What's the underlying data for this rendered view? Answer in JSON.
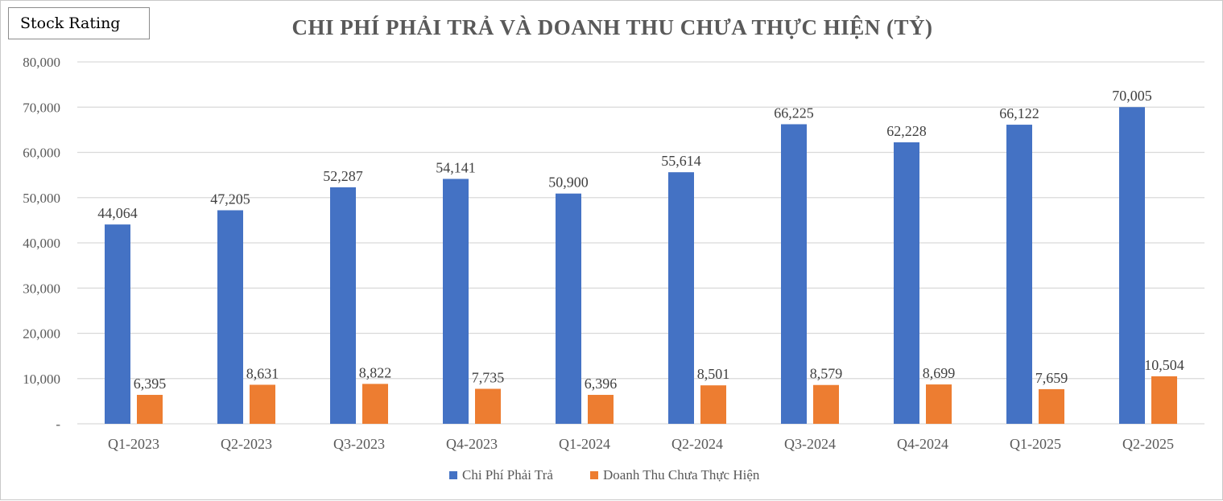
{
  "badge": {
    "label": "Stock Rating"
  },
  "chart_data": {
    "type": "bar",
    "title": "CHI PHÍ PHẢI TRẢ VÀ DOANH THU CHƯA THỰC HIỆN (TỶ)",
    "categories": [
      "Q1-2023",
      "Q2-2023",
      "Q3-2023",
      "Q4-2023",
      "Q1-2024",
      "Q2-2024",
      "Q3-2024",
      "Q4-2024",
      "Q1-2025",
      "Q2-2025"
    ],
    "series": [
      {
        "name": "Chi Phí Phải Trả",
        "color": "#4472C4",
        "values": [
          44064,
          47205,
          52287,
          54141,
          50900,
          55614,
          66225,
          62228,
          66122,
          70005
        ],
        "labels": [
          "44,064",
          "47,205",
          "52,287",
          "54,141",
          "50,900",
          "55,614",
          "66,225",
          "62,228",
          "66,122",
          "70,005"
        ]
      },
      {
        "name": "Doanh Thu Chưa Thực Hiện",
        "color": "#ED7D31",
        "values": [
          6395,
          8631,
          8822,
          7735,
          6396,
          8501,
          8579,
          8699,
          7659,
          10504
        ],
        "labels": [
          "6,395",
          "8,631",
          "8,822",
          "7,735",
          "6,396",
          "8,501",
          "8,579",
          "8,699",
          "7,659",
          "10,504"
        ]
      }
    ],
    "ylim": [
      0,
      80000
    ],
    "yticks": [
      0,
      10000,
      20000,
      30000,
      40000,
      50000,
      60000,
      70000,
      80000
    ],
    "ytick_labels": [
      "-",
      "10,000",
      "20,000",
      "30,000",
      "40,000",
      "50,000",
      "60,000",
      "70,000",
      "80,000"
    ],
    "grid": true,
    "legend_position": "bottom"
  }
}
